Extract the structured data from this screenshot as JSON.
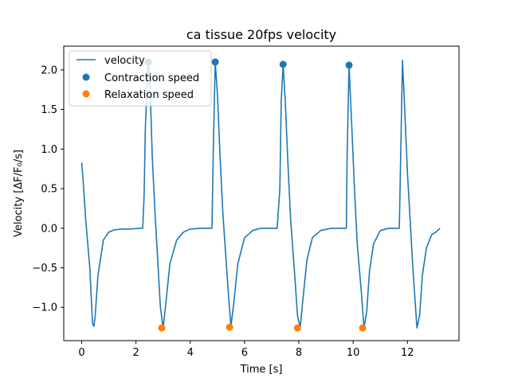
{
  "chart_data": {
    "type": "line",
    "title": "ca tissue 20fps velocity",
    "xlabel": "Time [s]",
    "ylabel": "Velocity [ΔF/F₀/s]",
    "xlim": [
      -0.66,
      13.9
    ],
    "ylim": [
      -1.42,
      2.3
    ],
    "xticks": [
      0,
      2,
      4,
      6,
      8,
      10,
      12
    ],
    "xtick_labels": [
      "0",
      "2",
      "4",
      "6",
      "8",
      "10",
      "12"
    ],
    "yticks": [
      -1.0,
      -0.5,
      0.0,
      0.5,
      1.0,
      1.5,
      2.0
    ],
    "ytick_labels": [
      "−1.0",
      "−0.5",
      "0.0",
      "0.5",
      "1.0",
      "1.5",
      "2.0"
    ],
    "grid": false,
    "legend_position": "top-left",
    "series": [
      {
        "name": "velocity",
        "kind": "line",
        "color": "#1f77b4",
        "x": [
          0.0,
          0.05,
          0.15,
          0.3,
          0.4,
          0.45,
          0.5,
          0.6,
          0.8,
          1.0,
          1.2,
          1.5,
          1.8,
          2.1,
          2.25,
          2.3,
          2.35,
          2.45,
          2.52,
          2.6,
          2.7,
          2.8,
          2.9,
          3.0,
          3.1,
          3.25,
          3.5,
          3.75,
          4.0,
          4.4,
          4.75,
          4.8,
          4.85,
          4.92,
          5.0,
          5.1,
          5.2,
          5.3,
          5.4,
          5.5,
          5.6,
          5.75,
          6.0,
          6.3,
          6.6,
          6.9,
          7.2,
          7.3,
          7.35,
          7.42,
          7.5,
          7.6,
          7.7,
          7.85,
          7.95,
          8.05,
          8.15,
          8.3,
          8.5,
          8.8,
          9.2,
          9.6,
          9.75,
          9.78,
          9.85,
          9.95,
          10.05,
          10.15,
          10.3,
          10.4,
          10.5,
          10.6,
          10.75,
          11.0,
          11.3,
          11.6,
          11.7,
          11.75,
          11.82,
          11.9,
          12.0,
          12.2,
          12.35,
          12.45,
          12.55,
          12.7,
          12.9,
          13.05,
          13.2
        ],
        "y": [
          0.83,
          0.62,
          0.1,
          -0.5,
          -1.2,
          -1.24,
          -1.1,
          -0.6,
          -0.15,
          -0.05,
          -0.02,
          -0.01,
          -0.01,
          0.0,
          0.0,
          0.4,
          1.3,
          2.1,
          1.8,
          0.9,
          0.2,
          -0.4,
          -1.0,
          -1.26,
          -0.95,
          -0.45,
          -0.15,
          -0.05,
          -0.01,
          0.0,
          0.0,
          0.0,
          1.0,
          2.1,
          1.7,
          0.9,
          0.2,
          -0.3,
          -0.8,
          -1.24,
          -0.95,
          -0.45,
          -0.12,
          -0.03,
          0.0,
          0.0,
          0.0,
          0.5,
          1.6,
          2.07,
          1.6,
          0.8,
          0.1,
          -0.6,
          -1.1,
          -1.26,
          -0.9,
          -0.4,
          -0.12,
          -0.03,
          0.0,
          0.0,
          0.0,
          0.9,
          2.06,
          1.3,
          0.5,
          -0.2,
          -0.8,
          -1.26,
          -1.05,
          -0.55,
          -0.2,
          -0.03,
          0.0,
          0.0,
          0.0,
          0.9,
          2.12,
          1.5,
          0.7,
          -0.5,
          -1.26,
          -1.1,
          -0.6,
          -0.25,
          -0.08,
          -0.05,
          0.0
        ]
      },
      {
        "name": "Contraction speed",
        "kind": "scatter",
        "color": "#1f77b4",
        "x": [
          2.45,
          4.92,
          7.42,
          9.85
        ],
        "y": [
          2.1,
          2.1,
          2.07,
          2.06
        ]
      },
      {
        "name": "Relaxation speed",
        "kind": "scatter",
        "color": "#ff7f0e",
        "x": [
          2.95,
          5.45,
          7.95,
          10.35
        ],
        "y": [
          -1.26,
          -1.25,
          -1.26,
          -1.26
        ]
      }
    ]
  }
}
